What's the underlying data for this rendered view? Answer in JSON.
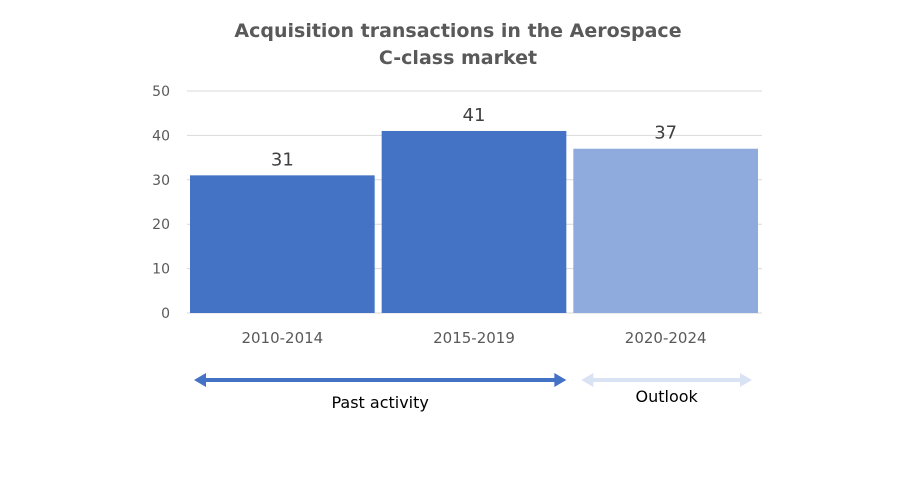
{
  "chart_data": {
    "type": "bar",
    "title": [
      "Acquisition transactions in the Aerospace",
      "C-class market"
    ],
    "categories": [
      "2010-2014",
      "2015-2019",
      "2020-2024"
    ],
    "values": [
      31,
      41,
      37
    ],
    "bar_colors": [
      "#4472c4",
      "#4472c4",
      "#8faadc"
    ],
    "ylim": [
      0,
      50
    ],
    "yticks": [
      0,
      10,
      20,
      30,
      40,
      50
    ],
    "grid": true,
    "xlabel": "",
    "ylabel": "",
    "annotations": [
      {
        "label": "Past activity",
        "spans": [
          "2010-2014",
          "2015-2019"
        ],
        "color": "#4472c4"
      },
      {
        "label": "Outlook",
        "spans": [
          "2020-2024"
        ],
        "color": "#dae3f3"
      }
    ]
  }
}
